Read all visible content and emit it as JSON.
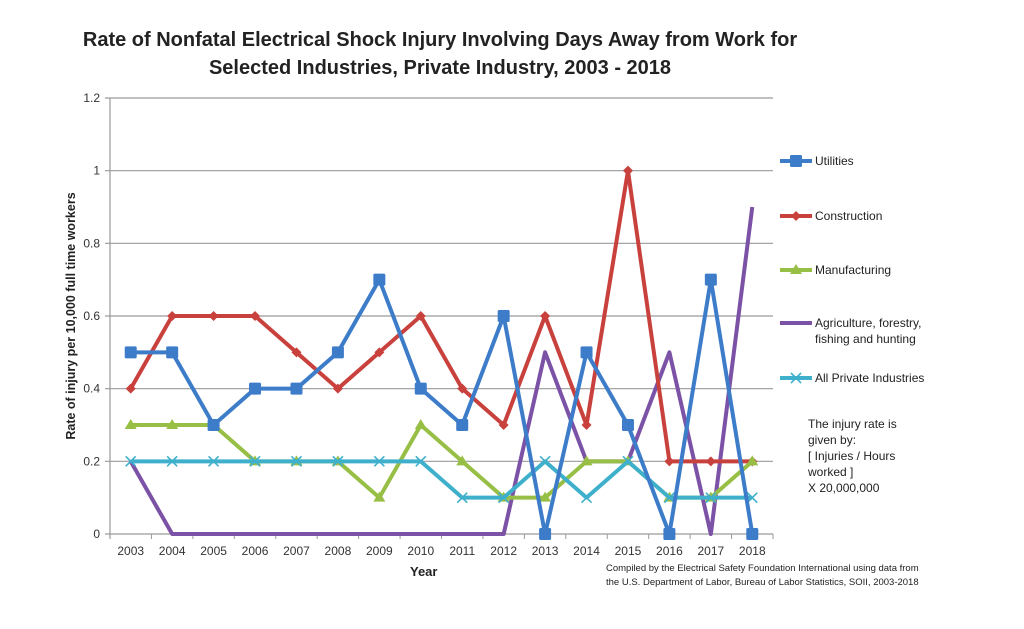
{
  "chart_data": {
    "type": "line",
    "title": "Rate of Nonfatal Electrical Shock Injury Involving Days Away from Work for Selected Industries, Private Industry, 2003 - 2018",
    "xlabel": "Year",
    "ylabel": "Rate of injury per 10,000 full time workers",
    "ylim": [
      0,
      1.2
    ],
    "yticks": [
      "0",
      "0.2",
      "0.4",
      "0.6",
      "0.8",
      "1",
      "1.2"
    ],
    "grid": true,
    "legend_placement": "right",
    "categories": [
      "2003",
      "2004",
      "2005",
      "2006",
      "2007",
      "2008",
      "2009",
      "2010",
      "2011",
      "2012",
      "2013",
      "2014",
      "2015",
      "2016",
      "2017",
      "2018"
    ],
    "series": [
      {
        "name": "Utilities",
        "color": "#3d7cc9",
        "marker": "square",
        "values": [
          0.5,
          0.5,
          0.3,
          0.4,
          0.4,
          0.5,
          0.7,
          0.4,
          0.3,
          0.6,
          0,
          0.5,
          0.3,
          0,
          0.7,
          0
        ]
      },
      {
        "name": "Construction",
        "color": "#c9413d",
        "marker": "diamond",
        "values": [
          0.4,
          0.6,
          0.6,
          0.6,
          0.5,
          0.4,
          0.5,
          0.6,
          0.4,
          0.3,
          0.6,
          0.3,
          1.0,
          0.2,
          0.2,
          0.2
        ]
      },
      {
        "name": "Manufacturing",
        "color": "#98bf45",
        "marker": "triangle",
        "values": [
          0.3,
          0.3,
          0.3,
          0.2,
          0.2,
          0.2,
          0.1,
          0.3,
          0.2,
          0.1,
          0.1,
          0.2,
          0.2,
          0.1,
          0.1,
          0.2
        ]
      },
      {
        "name": "Agriculture, forestry, fishing and hunting",
        "color": "#7b52a6",
        "marker": "none",
        "values": [
          0.2,
          0,
          0,
          0,
          0,
          0,
          0,
          0,
          0,
          0,
          0.5,
          0.2,
          0.2,
          0.5,
          0,
          0.9
        ]
      },
      {
        "name": "All Private Industries",
        "color": "#3fb0cc",
        "marker": "x",
        "values": [
          0.2,
          0.2,
          0.2,
          0.2,
          0.2,
          0.2,
          0.2,
          0.2,
          0.1,
          0.1,
          0.2,
          0.1,
          0.2,
          0.1,
          0.1,
          0.1
        ]
      }
    ],
    "annotations": {
      "note": "The injury rate is given by:\n[ Injuries / Hours worked ]\nX 20,000,000",
      "credit_line1": "Compiled by the Electrical Safety Foundation International using data from",
      "credit_line2": "the U.S. Department of Labor, Bureau of Labor Statistics, SOII, 2003-2018"
    }
  },
  "legend_labels": [
    "Utilities",
    "Construction",
    "Manufacturing",
    "Agriculture, forestry,\nfishing and hunting",
    "All Private Industries"
  ]
}
